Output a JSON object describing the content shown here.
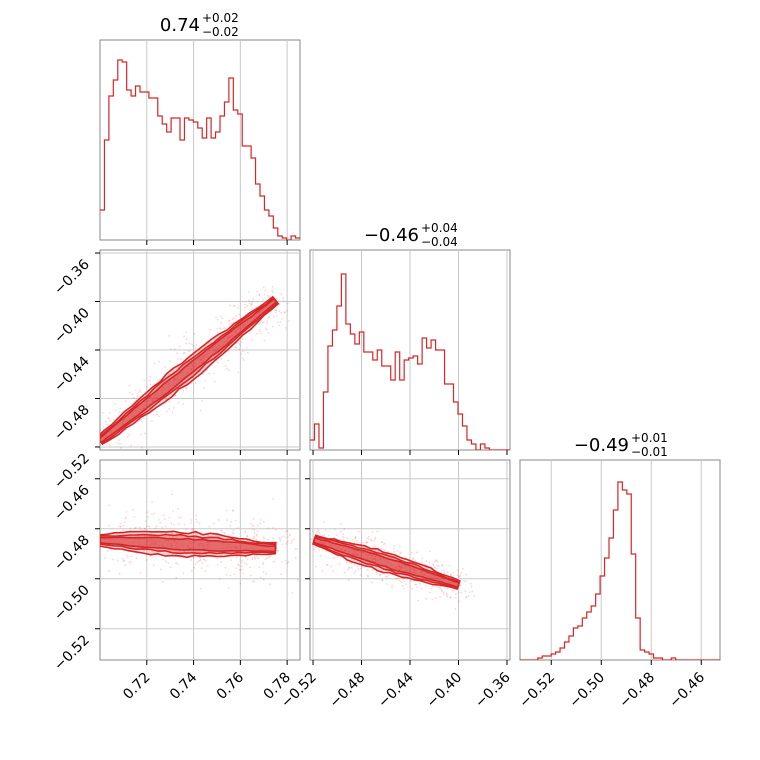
{
  "chart_data": {
    "type": "corner",
    "color": "#d62728",
    "params": [
      {
        "name": "p0",
        "range": [
          0.7,
          0.7855
        ]
      },
      {
        "name": "p1",
        "range": [
          -0.5225,
          -0.3575
        ]
      },
      {
        "name": "p2",
        "range": [
          -0.5325,
          -0.4525
        ]
      }
    ],
    "titles": [
      {
        "median": "0.74",
        "plus": "+0.02",
        "minus": "−0.02"
      },
      {
        "median": "−0.46",
        "plus": "+0.04",
        "minus": "−0.04"
      },
      {
        "median": "−0.49",
        "plus": "+0.01",
        "minus": "−0.01"
      }
    ],
    "ticks": {
      "p0": [
        {
          "v": 0.72,
          "label": "0.72"
        },
        {
          "v": 0.74,
          "label": "0.74"
        },
        {
          "v": 0.76,
          "label": "0.76"
        },
        {
          "v": 0.78,
          "label": "0.78"
        }
      ],
      "p1_y": [
        {
          "v": -0.36,
          "label": "−0.36"
        },
        {
          "v": -0.4,
          "label": "−0.40"
        },
        {
          "v": -0.44,
          "label": "−0.44"
        },
        {
          "v": -0.48,
          "label": "−0.48"
        },
        {
          "v": -0.52,
          "label": "−0.52"
        }
      ],
      "p1_x": [
        {
          "v": -0.52,
          "label": "−0.52"
        },
        {
          "v": -0.48,
          "label": "−0.48"
        },
        {
          "v": -0.44,
          "label": "−0.44"
        },
        {
          "v": -0.4,
          "label": "−0.40"
        },
        {
          "v": -0.36,
          "label": "−0.36"
        }
      ],
      "p2_y": [
        {
          "v": -0.46,
          "label": "−0.46"
        },
        {
          "v": -0.48,
          "label": "−0.48"
        },
        {
          "v": -0.5,
          "label": "−0.50"
        },
        {
          "v": -0.52,
          "label": "−0.52"
        }
      ],
      "p2_x": [
        {
          "v": -0.52,
          "label": "−0.52"
        },
        {
          "v": -0.5,
          "label": "−0.50"
        },
        {
          "v": -0.48,
          "label": "−0.48"
        },
        {
          "v": -0.46,
          "label": "−0.46"
        }
      ]
    },
    "hist_p0": {
      "x_start": 0.7,
      "bin_width": 0.0019,
      "counts": [
        0.15,
        0.5,
        0.72,
        0.8,
        0.9,
        0.89,
        0.75,
        0.72,
        0.77,
        0.74,
        0.74,
        0.71,
        0.71,
        0.62,
        0.58,
        0.54,
        0.61,
        0.61,
        0.5,
        0.61,
        0.6,
        0.59,
        0.56,
        0.51,
        0.61,
        0.51,
        0.54,
        0.62,
        0.69,
        0.81,
        0.65,
        0.63,
        0.47,
        0.47,
        0.41,
        0.28,
        0.22,
        0.15,
        0.12,
        0.06,
        0.02,
        0.01,
        0.0,
        0.02,
        0.01
      ]
    },
    "hist_p1": {
      "x_start": -0.5225,
      "bin_width": 0.0037,
      "counts": [
        0.05,
        0.13,
        0.01,
        0.29,
        0.52,
        0.6,
        0.72,
        0.88,
        0.63,
        0.58,
        0.53,
        0.59,
        0.49,
        0.49,
        0.45,
        0.5,
        0.42,
        0.42,
        0.35,
        0.49,
        0.35,
        0.45,
        0.46,
        0.47,
        0.43,
        0.56,
        0.51,
        0.55,
        0.5,
        0.5,
        0.33,
        0.33,
        0.24,
        0.18,
        0.12,
        0.05,
        0.03,
        0.0,
        0.03,
        0.01,
        0.0,
        0.0,
        0.0,
        0.0,
        0.0
      ]
    },
    "hist_p2": {
      "x_start": -0.5325,
      "bin_width": 0.00178,
      "counts": [
        0.0,
        0.0,
        0.0,
        0.0,
        0.01,
        0.02,
        0.02,
        0.03,
        0.04,
        0.06,
        0.09,
        0.12,
        0.16,
        0.17,
        0.21,
        0.24,
        0.27,
        0.33,
        0.42,
        0.51,
        0.61,
        0.75,
        0.89,
        0.85,
        0.83,
        0.53,
        0.21,
        0.05,
        0.04,
        0.03,
        0.01,
        0.01,
        0.0,
        0.0,
        0.01,
        0.0,
        0.0,
        0.0,
        0.0,
        0.0,
        0.0,
        0.0,
        0.0,
        0.0,
        0.0
      ]
    },
    "scatter": [
      {
        "x": "p0",
        "y": "p1",
        "trend": [
          [
            0.7,
            -0.515
          ],
          [
            0.775,
            -0.399
          ]
        ],
        "spread_x": 0.006,
        "spread_y": 0.008
      },
      {
        "x": "p0",
        "y": "p2",
        "trend": [
          [
            0.7,
            -0.4845
          ],
          [
            0.775,
            -0.488
          ]
        ],
        "spread_x": 0.008,
        "spread_y": 0.006
      },
      {
        "x": "p1",
        "y": "p2",
        "trend": [
          [
            -0.519,
            -0.4845
          ],
          [
            -0.4,
            -0.5025
          ]
        ],
        "spread_x": 0.01,
        "spread_y": 0.004
      }
    ]
  }
}
